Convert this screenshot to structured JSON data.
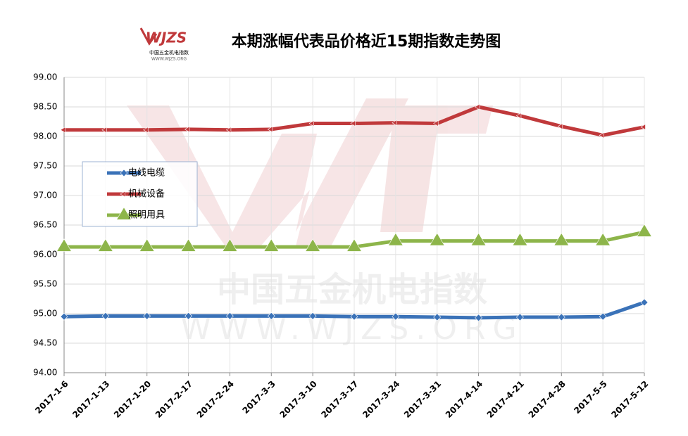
{
  "chart_data": {
    "type": "line",
    "title": "本期涨幅代表品价格近15期指数走势图",
    "logo": {
      "mark": "WJZS",
      "name": "中国五金机电指数",
      "url": "WWW.WJZS.ORG"
    },
    "watermark": {
      "name": "中国五金机电指数",
      "url": "WWW.WJZS.ORG"
    },
    "categories": [
      "2017-1-6",
      "2017-1-13",
      "2017-1-20",
      "2017-2-17",
      "2017-2-24",
      "2017-3-3",
      "2017-3-10",
      "2017-3-17",
      "2017-3-24",
      "2017-3-31",
      "2017-4-14",
      "2017-4-21",
      "2017-4-28",
      "2017-5-5",
      "2017-5-12"
    ],
    "series": [
      {
        "name": "电线电缆",
        "color": "#3a72b8",
        "marker": "diamond",
        "values": [
          94.95,
          94.96,
          94.96,
          94.96,
          94.96,
          94.96,
          94.96,
          94.95,
          94.95,
          94.94,
          94.93,
          94.94,
          94.94,
          94.95,
          95.19
        ]
      },
      {
        "name": "机械设备",
        "color": "#c0393b",
        "marker": "arrow",
        "values": [
          98.11,
          98.11,
          98.11,
          98.12,
          98.11,
          98.12,
          98.22,
          98.22,
          98.23,
          98.22,
          98.5,
          98.35,
          98.17,
          98.02,
          98.16
        ]
      },
      {
        "name": "照明用具",
        "color": "#8db54a",
        "marker": "triangle",
        "values": [
          96.13,
          96.13,
          96.13,
          96.13,
          96.13,
          96.13,
          96.13,
          96.13,
          96.23,
          96.23,
          96.23,
          96.23,
          96.23,
          96.23,
          96.38
        ]
      }
    ],
    "ylim": [
      94,
      99
    ],
    "yticks": [
      {
        "value": 94,
        "label": "94.00"
      },
      {
        "value": 94.5,
        "label": "94.50"
      },
      {
        "value": 95,
        "label": "95.00"
      },
      {
        "value": 95.5,
        "label": "95.50"
      },
      {
        "value": 96,
        "label": "96.00"
      },
      {
        "value": 96.5,
        "label": "96.50"
      },
      {
        "value": 97,
        "label": "97.00"
      },
      {
        "value": 97.5,
        "label": "97.50"
      },
      {
        "value": 98,
        "label": "98.00"
      },
      {
        "value": 98.5,
        "label": "98.50"
      },
      {
        "value": 99,
        "label": "99.00"
      }
    ],
    "grid": true
  }
}
